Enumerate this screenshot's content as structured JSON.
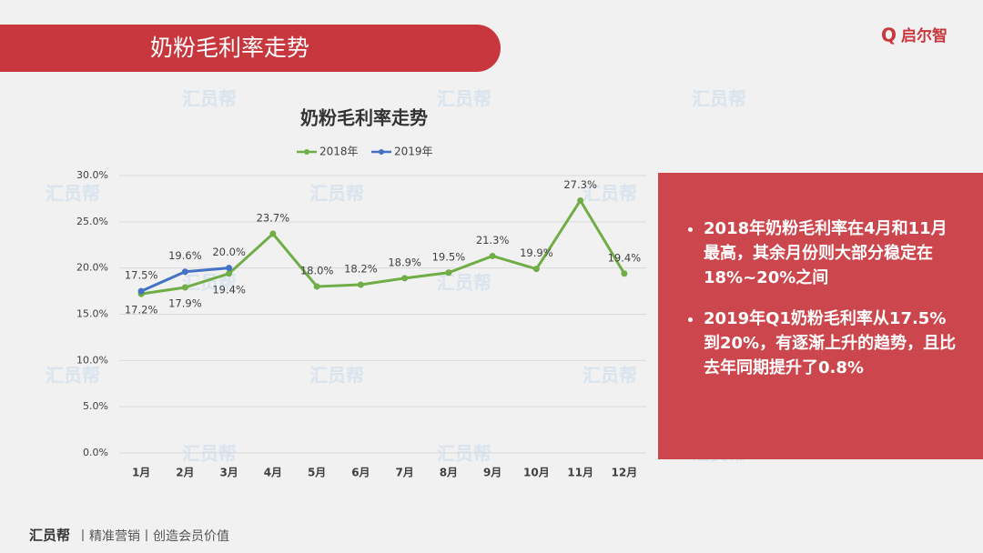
{
  "header": {
    "title": "奶粉毛利率走势",
    "logo": "启尔智"
  },
  "watermark": "汇员帮",
  "chart_data": {
    "type": "line",
    "title": "奶粉毛利率走势",
    "categories": [
      "1月",
      "2月",
      "3月",
      "4月",
      "5月",
      "6月",
      "7月",
      "8月",
      "9月",
      "10月",
      "11月",
      "12月"
    ],
    "series": [
      {
        "name": "2018年",
        "color": "#70ad47",
        "values": [
          17.2,
          17.9,
          19.4,
          23.7,
          18.0,
          18.2,
          18.9,
          19.5,
          21.3,
          19.9,
          27.3,
          19.4
        ],
        "value_labels": [
          "17.2%",
          "17.9%",
          "19.4%",
          "23.7%",
          "18.0%",
          "18.2%",
          "18.9%",
          "19.5%",
          "21.3%",
          "19.9%",
          "27.3%",
          "19.4%"
        ]
      },
      {
        "name": "2019年",
        "color": "#4472c4",
        "values": [
          17.5,
          19.6,
          20.0,
          null,
          null,
          null,
          null,
          null,
          null,
          null,
          null,
          null
        ],
        "value_labels": [
          "17.5%",
          "19.6%",
          "20.0%",
          null,
          null,
          null,
          null,
          null,
          null,
          null,
          null,
          null
        ]
      }
    ],
    "ylim": [
      0,
      30
    ],
    "yticks": [
      {
        "value": 0,
        "label": "0.0%"
      },
      {
        "value": 5,
        "label": "5.0%"
      },
      {
        "value": 10,
        "label": "10.0%"
      },
      {
        "value": 15,
        "label": "15.0%"
      },
      {
        "value": 20,
        "label": "20.0%"
      },
      {
        "value": 25,
        "label": "25.0%"
      },
      {
        "value": 30,
        "label": "30.0%"
      }
    ],
    "grid": true,
    "legend": "top"
  },
  "notes": {
    "bullets": [
      "2018年奶粉毛利率在4月和11月最高，其余月份则大部分稳定在18%~20%之间",
      "2019年Q1奶粉毛利率从17.5%到20%，有逐渐上升的趋势，且比去年同期提升了0.8%"
    ]
  },
  "footer": {
    "brand": "汇员帮",
    "slogan": "丨精准营销丨创造会员价值"
  }
}
